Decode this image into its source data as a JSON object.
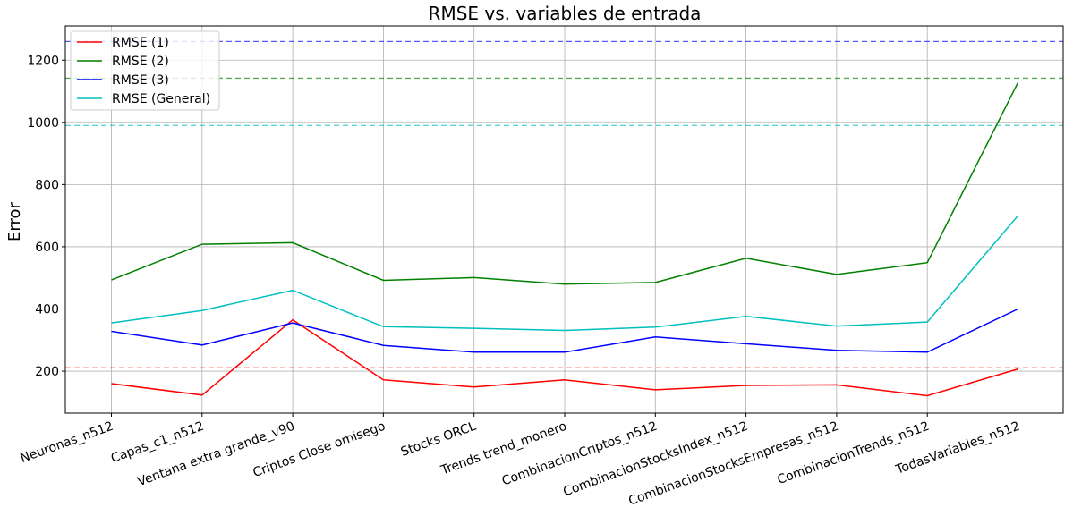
{
  "chart_data": {
    "type": "line",
    "title": "RMSE vs. variables de entrada",
    "xlabel": "",
    "ylabel": "Error",
    "categories": [
      "Neuronas_n512",
      "Capas_c1_n512",
      "Ventana extra grande_v90",
      "Criptos Close omisego",
      "Stocks ORCL",
      "Trends trend_monero",
      "CombinacionCriptos_n512",
      "CombinacionStocksIndex_n512",
      "CombinacionStocksEmpresas_n512",
      "CombinacionTrends_n512",
      "TodasVariables_n512"
    ],
    "ylim": [
      65,
      1310
    ],
    "yticks": [
      200,
      400,
      600,
      800,
      1000,
      1200
    ],
    "grid": true,
    "legend_position": "upper-left",
    "series": [
      {
        "name": "RMSE (1)",
        "color": "#ff0000",
        "values": [
          160,
          123,
          365,
          172,
          149,
          172,
          140,
          154,
          156,
          121,
          207
        ]
      },
      {
        "name": "RMSE (2)",
        "color": "#008000",
        "values": [
          493,
          608,
          613,
          492,
          501,
          480,
          485,
          563,
          511,
          549,
          1128
        ]
      },
      {
        "name": "RMSE (3)",
        "color": "#0000ff",
        "values": [
          328,
          284,
          355,
          283,
          261,
          261,
          310,
          288,
          267,
          261,
          400
        ]
      },
      {
        "name": "RMSE (General)",
        "color": "#00bfbf",
        "values": [
          355,
          395,
          460,
          343,
          338,
          331,
          342,
          376,
          345,
          358,
          700
        ]
      }
    ],
    "reference_lines": [
      {
        "value": 1260,
        "color": "#0000ff"
      },
      {
        "value": 1142,
        "color": "#008000"
      },
      {
        "value": 990,
        "color": "#00bfbf"
      },
      {
        "value": 211,
        "color": "#ff0000"
      }
    ]
  }
}
